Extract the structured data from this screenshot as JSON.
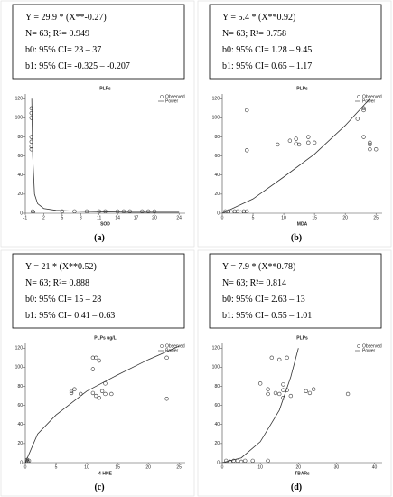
{
  "chart_data": [
    {
      "type": "scatter",
      "title": "PLPs",
      "xlabel": "SOD",
      "label": "(a)",
      "annotations": [
        "Y = 29.9 * (X**-0.27)",
        "N= 63; R²= 0.949",
        "b0: 95% CI= 23 – 37",
        "b1: 95% CI= -0.325 – -0.207"
      ],
      "xlim": [
        -1,
        25
      ],
      "ylim": [
        0,
        125
      ],
      "xticks": [
        -1,
        2,
        5,
        8,
        11,
        14,
        17,
        20,
        24
      ],
      "yticks": [
        0,
        20,
        40,
        60,
        80,
        100,
        120
      ],
      "series": [
        {
          "name": "Observed",
          "kind": "marker",
          "color": "#333333",
          "x": [
            0,
            0,
            0,
            0,
            0,
            0,
            0,
            0.2,
            0.3,
            5,
            7,
            9,
            11,
            12,
            14,
            15,
            16,
            18,
            19,
            20
          ],
          "values": [
            110,
            105,
            100,
            80,
            75,
            70,
            67,
            2,
            1,
            2,
            2,
            2,
            2,
            2,
            2,
            2,
            2,
            2,
            2,
            2
          ]
        },
        {
          "name": "Power",
          "kind": "line",
          "color": "#333333",
          "x": [
            0.05,
            0.2,
            0.5,
            1,
            2,
            4,
            8,
            12,
            16,
            20,
            24
          ],
          "values": [
            120,
            60,
            20,
            10,
            5,
            3,
            2,
            1.5,
            1,
            1,
            1
          ]
        }
      ]
    },
    {
      "type": "scatter",
      "title": "PLPs",
      "xlabel": "MDA",
      "label": "(b)",
      "annotations": [
        "Y = 5.4 * (X**0.92)",
        "N= 63; R²= 0.758",
        "b0: 95% CI= 1.28 – 9.45",
        "b1: 95% CI= 0.65 – 1.17"
      ],
      "xlim": [
        0,
        26
      ],
      "ylim": [
        0,
        125
      ],
      "xticks": [
        0,
        5,
        10,
        15,
        20,
        25
      ],
      "yticks": [
        0,
        20,
        40,
        60,
        80,
        100,
        120
      ],
      "series": [
        {
          "name": "Observed",
          "kind": "marker",
          "color": "#333333",
          "x": [
            0.5,
            1,
            1.5,
            2,
            2.5,
            3,
            3.5,
            4,
            4,
            4,
            9,
            11,
            12,
            12.5,
            12,
            14,
            14,
            15,
            23,
            23,
            22,
            23,
            24,
            24,
            24,
            25
          ],
          "values": [
            2,
            2,
            1,
            2,
            2,
            1,
            2,
            2,
            108,
            66,
            72,
            76,
            73,
            72,
            78,
            80,
            74,
            74,
            110,
            108,
            99,
            80,
            74,
            72,
            67,
            67
          ]
        },
        {
          "name": "Power",
          "kind": "line",
          "color": "#333333",
          "x": [
            0,
            5,
            10,
            15,
            20,
            24
          ],
          "values": [
            0,
            15,
            38,
            62,
            92,
            120
          ]
        }
      ]
    },
    {
      "type": "scatter",
      "title": "PLPs ug/L",
      "xlabel": "4-HNE",
      "label": "(c)",
      "annotations": [
        "Y = 21 * (X**0.52)",
        "N= 63; R²= 0.888",
        "b0: 95% CI= 15 – 28",
        "b1: 95% CI= 0.41 – 0.63"
      ],
      "xlim": [
        0,
        26
      ],
      "ylim": [
        0,
        125
      ],
      "xticks": [
        0,
        5,
        10,
        15,
        20,
        25
      ],
      "yticks": [
        0,
        20,
        40,
        60,
        80,
        100,
        120
      ],
      "series": [
        {
          "name": "Observed",
          "kind": "marker",
          "color": "#333333",
          "x": [
            0.2,
            0.4,
            0.6,
            0.3,
            7.5,
            7.5,
            8,
            9,
            11,
            11.5,
            12,
            11,
            11,
            11.5,
            12,
            12.5,
            13,
            13,
            14,
            23,
            23
          ],
          "values": [
            2,
            1,
            2,
            3,
            75,
            73,
            77,
            72,
            110,
            110,
            107,
            98,
            73,
            70,
            68,
            75,
            83,
            72,
            72,
            110,
            67
          ]
        },
        {
          "name": "Power",
          "kind": "line",
          "color": "#333333",
          "x": [
            0,
            2,
            5,
            10,
            15,
            20,
            25
          ],
          "values": [
            0,
            30,
            50,
            75,
            92,
            108,
            122
          ]
        }
      ]
    },
    {
      "type": "scatter",
      "title": "PLPs",
      "xlabel": "TBARs",
      "label": "(d)",
      "annotations": [
        "Y = 7.9 * (X**0.78)",
        "N= 63; R²= 0.814",
        "b0: 95% CI= 2.63 – 13",
        "b1: 95% CI= 0.55 – 1.01"
      ],
      "xlim": [
        0,
        42
      ],
      "ylim": [
        0,
        125
      ],
      "xticks": [
        0,
        10,
        20,
        30,
        40
      ],
      "yticks": [
        0,
        20,
        40,
        60,
        80,
        100,
        120
      ],
      "series": [
        {
          "name": "Observed",
          "kind": "marker",
          "color": "#333333",
          "x": [
            1,
            2,
            3,
            4,
            5,
            6,
            8,
            12,
            10,
            12,
            12,
            13,
            14,
            15,
            15,
            16,
            16,
            17,
            17,
            18,
            22,
            23,
            24,
            33,
            16
          ],
          "values": [
            2,
            1,
            2,
            2,
            1,
            2,
            2,
            2,
            83,
            72,
            77,
            110,
            73,
            72,
            108,
            76,
            68,
            110,
            76,
            70,
            75,
            73,
            77,
            72,
            82
          ]
        },
        {
          "name": "Power",
          "kind": "line",
          "color": "#333333",
          "x": [
            0,
            5,
            10,
            15,
            18,
            20
          ],
          "values": [
            0,
            5,
            22,
            55,
            90,
            120
          ]
        }
      ]
    }
  ]
}
